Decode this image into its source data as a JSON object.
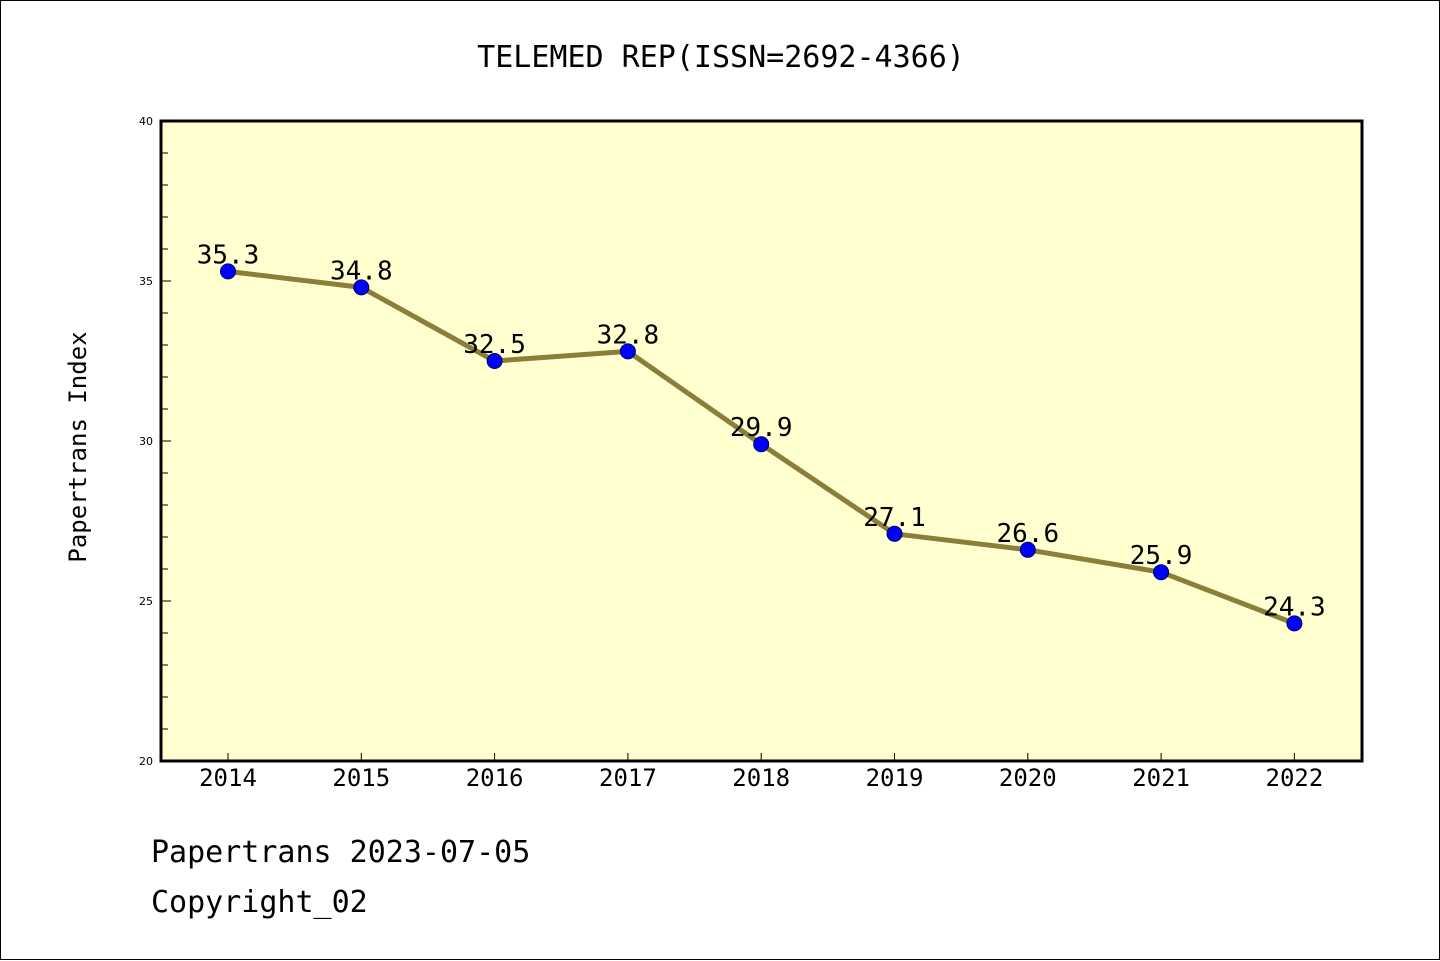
{
  "chart_data": {
    "type": "line",
    "title": "TELEMED REP(ISSN=2692-4366)",
    "xlabel": "",
    "ylabel": "Papertrans Index",
    "categories": [
      "2014",
      "2015",
      "2016",
      "2017",
      "2018",
      "2019",
      "2020",
      "2021",
      "2022"
    ],
    "series": [
      {
        "values": [
          35.3,
          34.8,
          32.5,
          32.8,
          29.9,
          27.1,
          26.6,
          25.9,
          24.3
        ],
        "data_labels": [
          "35.3",
          "34.8",
          "32.5",
          "32.8",
          "29.9",
          "27.1",
          "26.6",
          "25.9",
          "24.3"
        ]
      }
    ],
    "ylim": [
      20,
      40
    ],
    "yticks": [
      "20",
      "25",
      "30",
      "35",
      "40"
    ],
    "grid": false,
    "legend": "none",
    "colors": {
      "plot_background": "#ffffd0",
      "line": "#8b7d3a",
      "marker": "#0000ff"
    }
  },
  "footer": {
    "line1": "Papertrans 2023-07-05",
    "line2": "Copyright_02"
  }
}
